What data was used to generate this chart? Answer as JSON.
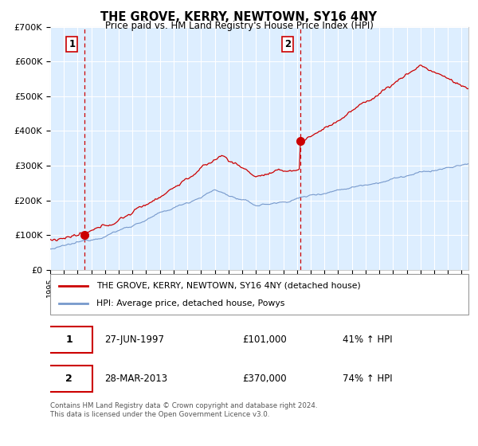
{
  "title": "THE GROVE, KERRY, NEWTOWN, SY16 4NY",
  "subtitle": "Price paid vs. HM Land Registry's House Price Index (HPI)",
  "legend_label_red": "THE GROVE, KERRY, NEWTOWN, SY16 4NY (detached house)",
  "legend_label_blue": "HPI: Average price, detached house, Powys",
  "annotation1_label": "1",
  "annotation1_date": "27-JUN-1997",
  "annotation1_price": "£101,000",
  "annotation1_hpi": "41% ↑ HPI",
  "annotation2_label": "2",
  "annotation2_date": "28-MAR-2013",
  "annotation2_price": "£370,000",
  "annotation2_hpi": "74% ↑ HPI",
  "footnote": "Contains HM Land Registry data © Crown copyright and database right 2024.\nThis data is licensed under the Open Government Licence v3.0.",
  "red_color": "#cc0000",
  "blue_color": "#7799cc",
  "bg_color": "#ddeeff",
  "grid_color": "#ffffff",
  "dashed_line_color": "#cc0000",
  "marker_color": "#cc0000",
  "ylim": [
    0,
    700000
  ],
  "yticks": [
    0,
    100000,
    200000,
    300000,
    400000,
    500000,
    600000,
    700000
  ],
  "ytick_labels": [
    "£0",
    "£100K",
    "£200K",
    "£300K",
    "£400K",
    "£500K",
    "£600K",
    "£700K"
  ],
  "sale1_year": 1997.49,
  "sale1_price": 101000,
  "sale2_year": 2013.24,
  "sale2_price": 370000,
  "xmin": 1995,
  "xmax": 2025.5
}
